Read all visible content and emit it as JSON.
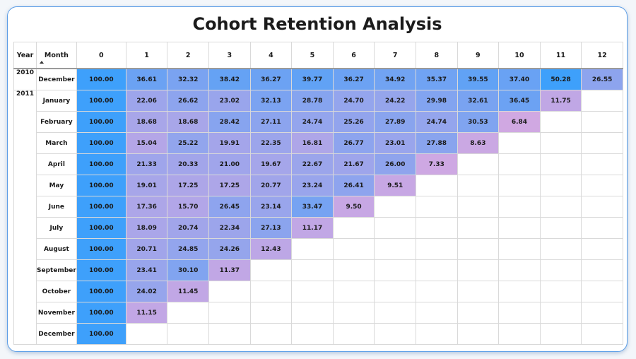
{
  "title": "Cohort Retention Analysis",
  "columns": {
    "year": "Year",
    "month": "Month"
  },
  "colors": {
    "high": "#3ea0fb",
    "low": "#d3a8e2",
    "border": "#5b9de6"
  },
  "chart_data": {
    "type": "heatmap",
    "title": "Cohort Retention Analysis",
    "x": [
      "0",
      "1",
      "2",
      "3",
      "4",
      "5",
      "6",
      "7",
      "8",
      "9",
      "10",
      "11",
      "12"
    ],
    "rows": [
      {
        "year": "2010",
        "month": "December",
        "values": [
          100.0,
          36.61,
          32.32,
          38.42,
          36.27,
          39.77,
          36.27,
          34.92,
          35.37,
          39.55,
          37.4,
          50.28,
          26.55
        ]
      },
      {
        "year": "2011",
        "month": "January",
        "values": [
          100.0,
          22.06,
          26.62,
          23.02,
          32.13,
          28.78,
          24.7,
          24.22,
          29.98,
          32.61,
          36.45,
          11.75
        ]
      },
      {
        "year": "",
        "month": "February",
        "values": [
          100.0,
          18.68,
          18.68,
          28.42,
          27.11,
          24.74,
          25.26,
          27.89,
          24.74,
          30.53,
          6.84
        ]
      },
      {
        "year": "",
        "month": "March",
        "values": [
          100.0,
          15.04,
          25.22,
          19.91,
          22.35,
          16.81,
          26.77,
          23.01,
          27.88,
          8.63
        ]
      },
      {
        "year": "",
        "month": "April",
        "values": [
          100.0,
          21.33,
          20.33,
          21.0,
          19.67,
          22.67,
          21.67,
          26.0,
          7.33
        ]
      },
      {
        "year": "",
        "month": "May",
        "values": [
          100.0,
          19.01,
          17.25,
          17.25,
          20.77,
          23.24,
          26.41,
          9.51
        ]
      },
      {
        "year": "",
        "month": "June",
        "values": [
          100.0,
          17.36,
          15.7,
          26.45,
          23.14,
          33.47,
          9.5
        ]
      },
      {
        "year": "",
        "month": "July",
        "values": [
          100.0,
          18.09,
          20.74,
          22.34,
          27.13,
          11.17
        ]
      },
      {
        "year": "",
        "month": "August",
        "values": [
          100.0,
          20.71,
          24.85,
          24.26,
          12.43
        ]
      },
      {
        "year": "",
        "month": "September",
        "values": [
          100.0,
          23.41,
          30.1,
          11.37
        ]
      },
      {
        "year": "",
        "month": "October",
        "values": [
          100.0,
          24.02,
          11.45
        ]
      },
      {
        "year": "",
        "month": "November",
        "values": [
          100.0,
          11.15
        ]
      },
      {
        "year": "",
        "month": "December",
        "values": [
          100.0
        ]
      }
    ]
  }
}
